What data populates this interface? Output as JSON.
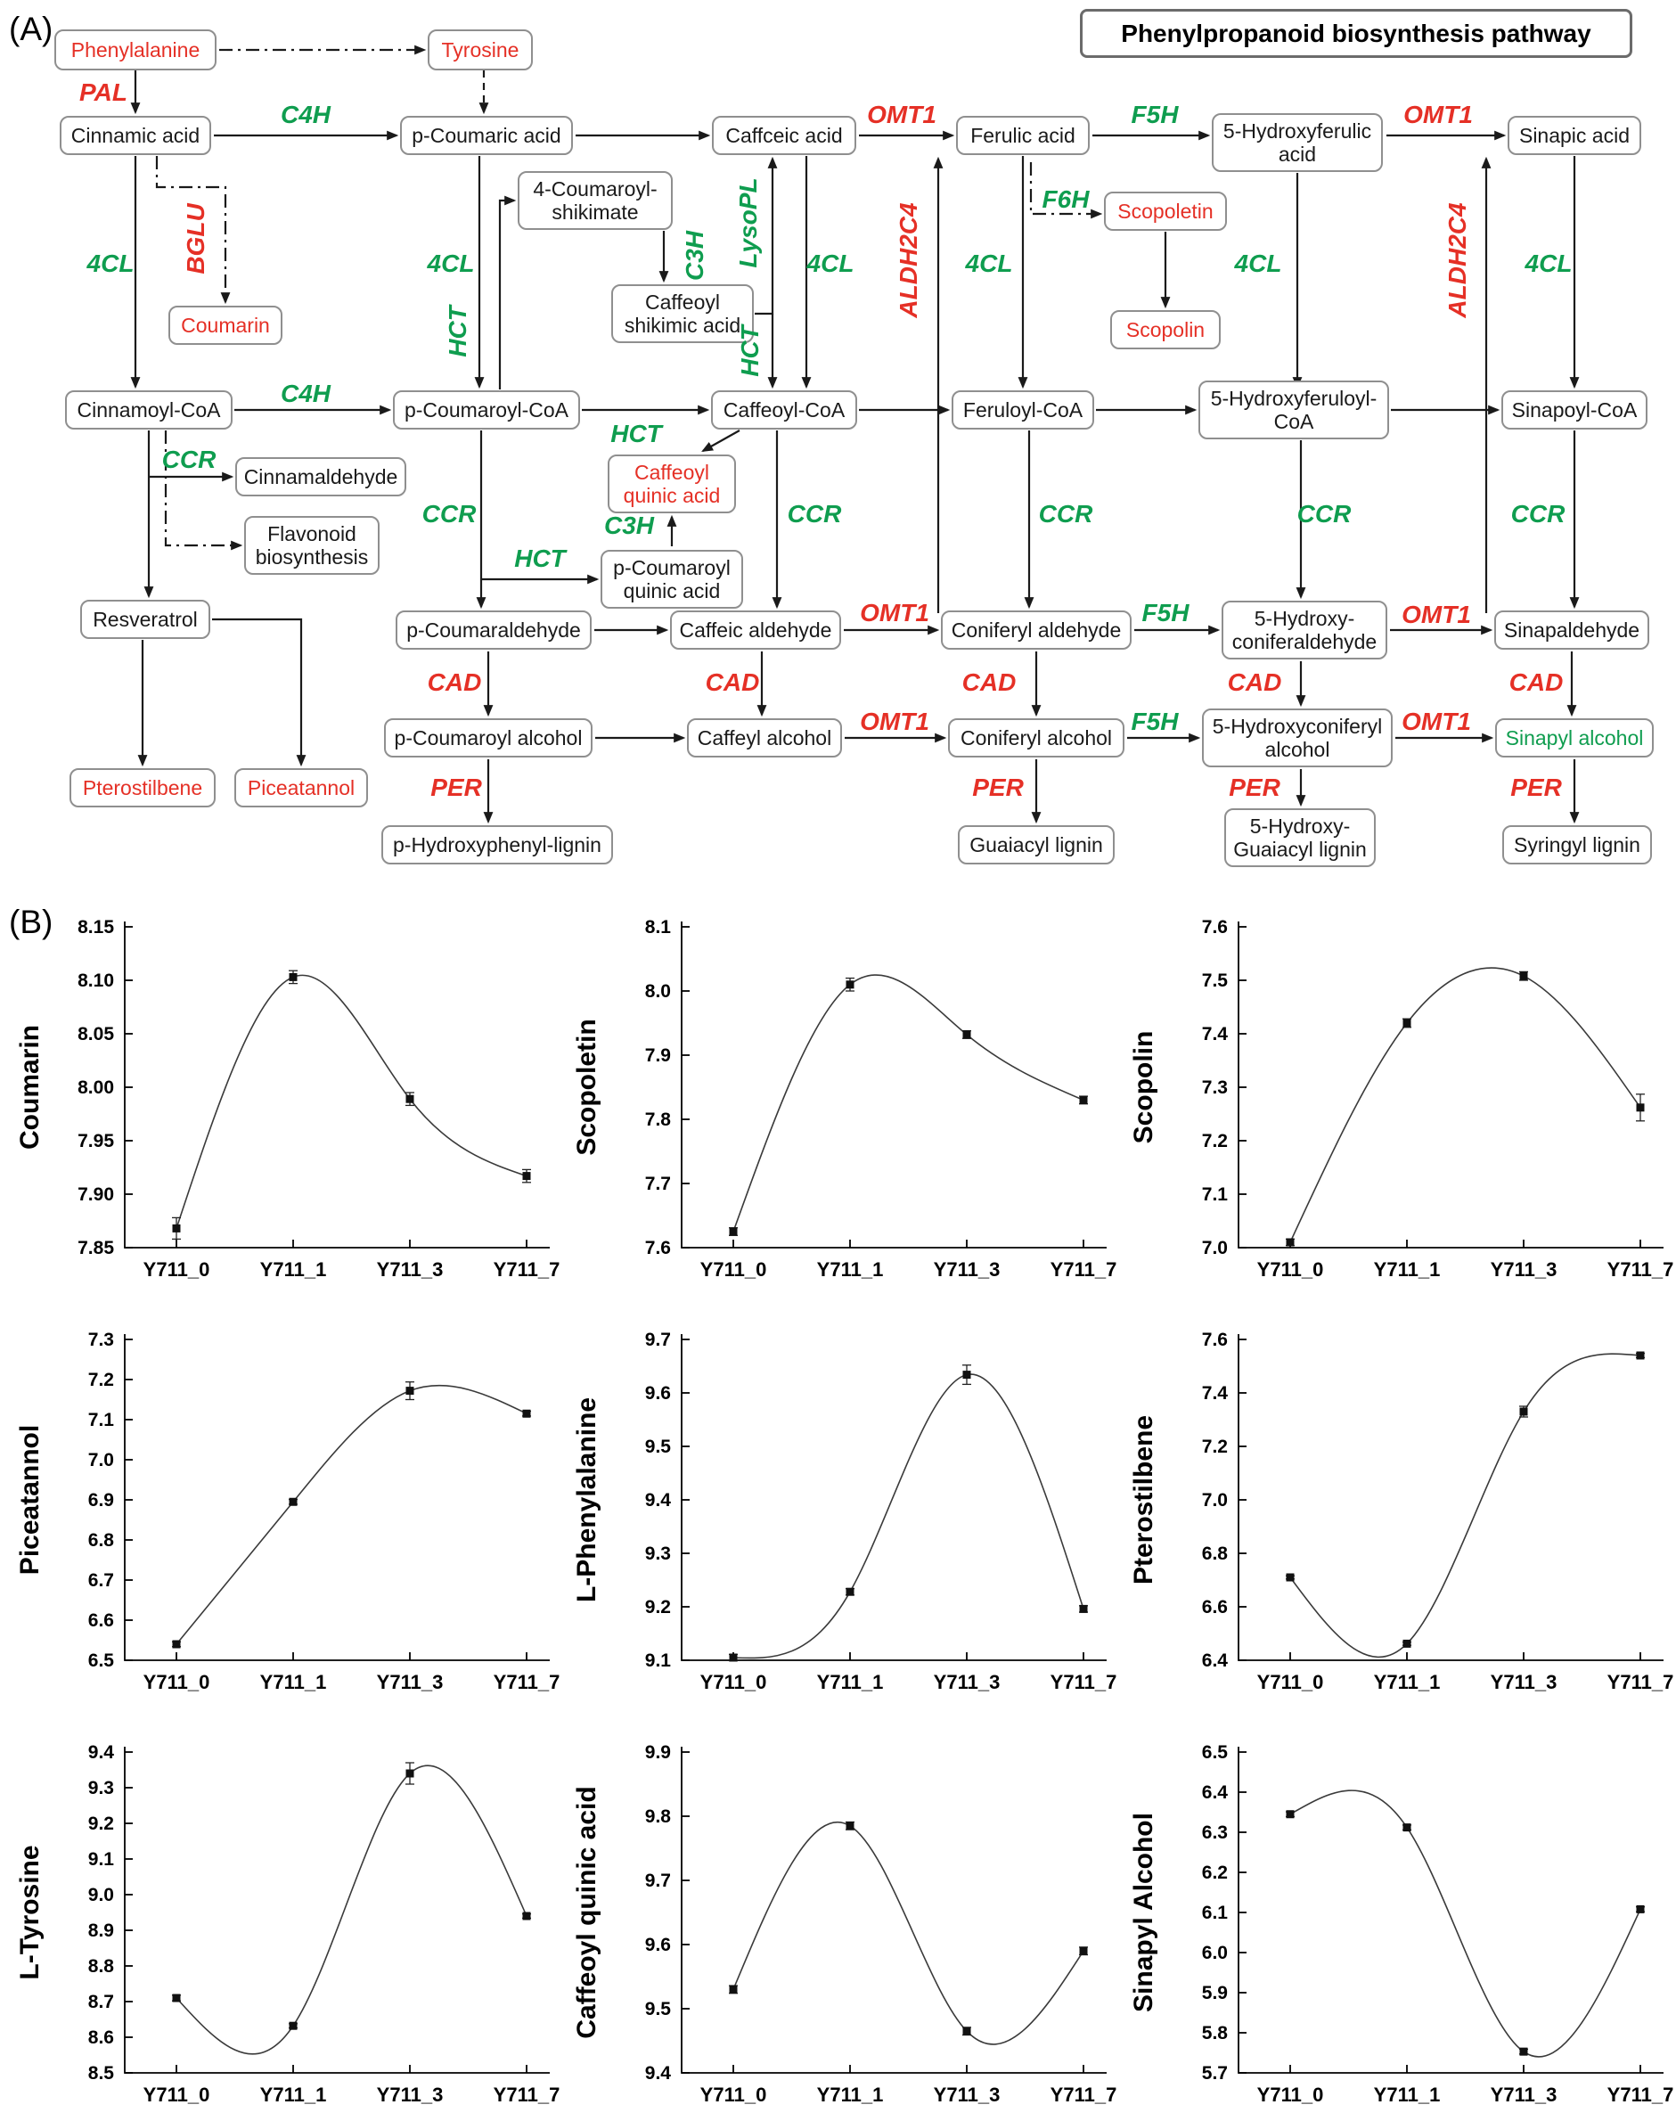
{
  "panel_a": {
    "label": "(A)",
    "title": "Phenylpropanoid biosynthesis pathway",
    "nodes": [
      {
        "id": "phe",
        "label": "Phenylalanine",
        "color": "red"
      },
      {
        "id": "tyr",
        "label": "Tyrosine",
        "color": "red"
      },
      {
        "id": "cinnamic",
        "label": "Cinnamic acid",
        "color": "black"
      },
      {
        "id": "pcoumaric",
        "label": "p-Coumaric acid",
        "color": "black"
      },
      {
        "id": "caffceic",
        "label": "Caffceic acid",
        "color": "black"
      },
      {
        "id": "ferulic",
        "label": "Ferulic acid",
        "color": "black"
      },
      {
        "id": "hferulic",
        "label": "5-Hydroxyferulic\nacid",
        "color": "black"
      },
      {
        "id": "sinapic",
        "label": "Sinapic acid",
        "color": "black"
      },
      {
        "id": "coumshik",
        "label": "4-Coumaroyl-\nshikimate",
        "color": "black"
      },
      {
        "id": "caffshik",
        "label": "Caffeoyl\nshikimic acid",
        "color": "black"
      },
      {
        "id": "coumarin",
        "label": "Coumarin",
        "color": "red"
      },
      {
        "id": "scopoletin",
        "label": "Scopoletin",
        "color": "red"
      },
      {
        "id": "scopolin",
        "label": "Scopolin",
        "color": "red"
      },
      {
        "id": "cincoa",
        "label": "Cinnamoyl-CoA",
        "color": "black"
      },
      {
        "id": "pcoumcoa",
        "label": "p-Coumaroyl-CoA",
        "color": "black"
      },
      {
        "id": "caffcoa",
        "label": "Caffeoyl-CoA",
        "color": "black"
      },
      {
        "id": "fercoa",
        "label": "Feruloyl-CoA",
        "color": "black"
      },
      {
        "id": "hfercoa",
        "label": "5-Hydroxyferuloyl-\nCoA",
        "color": "black"
      },
      {
        "id": "sincoa",
        "label": "Sinapoyl-CoA",
        "color": "black"
      },
      {
        "id": "caffquinic",
        "label": "Caffeoyl\nquinic acid",
        "color": "red"
      },
      {
        "id": "pcoumquinic",
        "label": "p-Coumaroyl\nquinic acid",
        "color": "black"
      },
      {
        "id": "cinnamald",
        "label": "Cinnamaldehyde",
        "color": "black"
      },
      {
        "id": "flavonoid",
        "label": "Flavonoid\nbiosynthesis",
        "color": "black"
      },
      {
        "id": "resveratrol",
        "label": "Resveratrol",
        "color": "black"
      },
      {
        "id": "pcoumald",
        "label": "p-Coumaraldehyde",
        "color": "black"
      },
      {
        "id": "caffald",
        "label": "Caffeic aldehyde",
        "color": "black"
      },
      {
        "id": "conifald",
        "label": "Coniferyl aldehyde",
        "color": "black"
      },
      {
        "id": "hconifald",
        "label": "5-Hydroxy-\nconiferaldehyde",
        "color": "black"
      },
      {
        "id": "sinapald",
        "label": "Sinapaldehyde",
        "color": "black"
      },
      {
        "id": "pcoumalc",
        "label": "p-Coumaroyl alcohol",
        "color": "black"
      },
      {
        "id": "caffalc",
        "label": "Caffeyl alcohol",
        "color": "black"
      },
      {
        "id": "conifalc",
        "label": "Coniferyl alcohol",
        "color": "black"
      },
      {
        "id": "hconifalc",
        "label": "5-Hydroxyconiferyl\nalcohol",
        "color": "black"
      },
      {
        "id": "sinapalc",
        "label": "Sinapyl alcohol",
        "color": "green"
      },
      {
        "id": "pterostilbene",
        "label": "Pterostilbene",
        "color": "red"
      },
      {
        "id": "piceatannol",
        "label": "Piceatannol",
        "color": "red"
      },
      {
        "id": "phlignin",
        "label": "p-Hydroxyphenyl-lignin",
        "color": "black"
      },
      {
        "id": "glignin",
        "label": "Guaiacyl lignin",
        "color": "black"
      },
      {
        "id": "hglignin",
        "label": "5-Hydroxy-\nGuaiacyl lignin",
        "color": "black"
      },
      {
        "id": "slignin",
        "label": "Syringyl lignin",
        "color": "black"
      }
    ],
    "enzymes": [
      {
        "id": "pal",
        "label": "PAL",
        "color": "red"
      },
      {
        "id": "c4h_1",
        "label": "C4H",
        "color": "green"
      },
      {
        "id": "omt1_1",
        "label": "OMT1",
        "color": "red"
      },
      {
        "id": "f5h_1",
        "label": "F5H",
        "color": "green"
      },
      {
        "id": "omt1_2",
        "label": "OMT1",
        "color": "red"
      },
      {
        "id": "bglu",
        "label": "BGLU",
        "color": "red"
      },
      {
        "id": "cl4_1",
        "label": "4CL",
        "color": "green"
      },
      {
        "id": "cl4_2",
        "label": "4CL",
        "color": "green"
      },
      {
        "id": "cl4_3",
        "label": "4CL",
        "color": "green"
      },
      {
        "id": "cl4_4",
        "label": "4CL",
        "color": "green"
      },
      {
        "id": "cl4_5",
        "label": "4CL",
        "color": "green"
      },
      {
        "id": "cl4_6",
        "label": "4CL",
        "color": "green"
      },
      {
        "id": "hct_1",
        "label": "HCT",
        "color": "green"
      },
      {
        "id": "hct_2",
        "label": "HCT",
        "color": "green"
      },
      {
        "id": "hct_3",
        "label": "HCT",
        "color": "green"
      },
      {
        "id": "hct_4",
        "label": "HCT",
        "color": "green"
      },
      {
        "id": "c3h_1",
        "label": "C3H",
        "color": "green"
      },
      {
        "id": "c3h_2",
        "label": "C3H",
        "color": "green"
      },
      {
        "id": "lysopl",
        "label": "LysoPL",
        "color": "green"
      },
      {
        "id": "aldh_1",
        "label": "ALDH2C4",
        "color": "red"
      },
      {
        "id": "aldh_2",
        "label": "ALDH2C4",
        "color": "red"
      },
      {
        "id": "f6h",
        "label": "F6H",
        "color": "green"
      },
      {
        "id": "c4h_2",
        "label": "C4H",
        "color": "green"
      },
      {
        "id": "ccr_1",
        "label": "CCR",
        "color": "green"
      },
      {
        "id": "ccr_2",
        "label": "CCR",
        "color": "green"
      },
      {
        "id": "ccr_3",
        "label": "CCR",
        "color": "green"
      },
      {
        "id": "ccr_4",
        "label": "CCR",
        "color": "green"
      },
      {
        "id": "ccr_5",
        "label": "CCR",
        "color": "green"
      },
      {
        "id": "ccr_6",
        "label": "CCR",
        "color": "green"
      },
      {
        "id": "omt1_3",
        "label": "OMT1",
        "color": "red"
      },
      {
        "id": "f5h_2",
        "label": "F5H",
        "color": "green"
      },
      {
        "id": "omt1_4",
        "label": "OMT1",
        "color": "red"
      },
      {
        "id": "cad_1",
        "label": "CAD",
        "color": "red"
      },
      {
        "id": "cad_2",
        "label": "CAD",
        "color": "red"
      },
      {
        "id": "cad_3",
        "label": "CAD",
        "color": "red"
      },
      {
        "id": "cad_4",
        "label": "CAD",
        "color": "red"
      },
      {
        "id": "cad_5",
        "label": "CAD",
        "color": "red"
      },
      {
        "id": "omt1_5",
        "label": "OMT1",
        "color": "red"
      },
      {
        "id": "f5h_3",
        "label": "F5H",
        "color": "green"
      },
      {
        "id": "omt1_6",
        "label": "OMT1",
        "color": "red"
      },
      {
        "id": "per_1",
        "label": "PER",
        "color": "red"
      },
      {
        "id": "per_2",
        "label": "PER",
        "color": "red"
      },
      {
        "id": "per_3",
        "label": "PER",
        "color": "red"
      },
      {
        "id": "per_4",
        "label": "PER",
        "color": "red"
      }
    ]
  },
  "panel_b": {
    "label": "(B)"
  },
  "chart_data": [
    {
      "id": "coumarin",
      "type": "line",
      "ylabel": "Coumarin",
      "categories": [
        "Y711_0",
        "Y711_1",
        "Y711_3",
        "Y711_7"
      ],
      "values": [
        7.868,
        8.103,
        7.989,
        7.917
      ],
      "errors": [
        0.01,
        0.006,
        0.006,
        0.006
      ],
      "ylim": [
        7.85,
        8.15
      ],
      "yticks": [
        7.85,
        7.9,
        7.95,
        8.0,
        8.05,
        8.1,
        8.15
      ],
      "ytick_labels": [
        "7.85",
        "7.90",
        "7.95",
        "8.00",
        "8.05",
        "8.10",
        "8.15"
      ]
    },
    {
      "id": "scopoletin",
      "type": "line",
      "ylabel": "Scopoletin",
      "categories": [
        "Y711_0",
        "Y711_1",
        "Y711_3",
        "Y711_7"
      ],
      "values": [
        7.625,
        8.01,
        7.932,
        7.83
      ],
      "errors": [
        0.006,
        0.01,
        0.006,
        0.006
      ],
      "ylim": [
        7.6,
        8.1
      ],
      "yticks": [
        7.6,
        7.7,
        7.8,
        7.9,
        8.0,
        8.1
      ],
      "ytick_labels": [
        "7.6",
        "7.7",
        "7.8",
        "7.9",
        "8.0",
        "8.1"
      ]
    },
    {
      "id": "scopolin",
      "type": "line",
      "ylabel": "Scopolin",
      "categories": [
        "Y711_0",
        "Y711_1",
        "Y711_3",
        "Y711_7"
      ],
      "values": [
        7.01,
        7.42,
        7.508,
        7.262
      ],
      "errors": [
        0.006,
        0.008,
        0.008,
        0.025
      ],
      "ylim": [
        7.0,
        7.6
      ],
      "yticks": [
        7.0,
        7.1,
        7.2,
        7.3,
        7.4,
        7.5,
        7.6
      ],
      "ytick_labels": [
        "7.0",
        "7.1",
        "7.2",
        "7.3",
        "7.4",
        "7.5",
        "7.6"
      ]
    },
    {
      "id": "piceatannol",
      "type": "line",
      "ylabel": "Piceatannol",
      "categories": [
        "Y711_0",
        "Y711_1",
        "Y711_3",
        "Y711_7"
      ],
      "values": [
        6.54,
        6.895,
        7.172,
        7.115
      ],
      "errors": [
        0.006,
        0.006,
        0.022,
        0.006
      ],
      "ylim": [
        6.5,
        7.3
      ],
      "yticks": [
        6.5,
        6.6,
        6.7,
        6.8,
        6.9,
        7.0,
        7.1,
        7.2,
        7.3
      ],
      "ytick_labels": [
        "6.5",
        "6.6",
        "6.7",
        "6.8",
        "6.9",
        "7.0",
        "7.1",
        "7.2",
        "7.3"
      ]
    },
    {
      "id": "l_phenylalanine",
      "type": "line",
      "ylabel": "L-Phenylalanine",
      "categories": [
        "Y711_0",
        "Y711_1",
        "Y711_3",
        "Y711_7"
      ],
      "values": [
        9.105,
        9.228,
        9.634,
        9.196
      ],
      "errors": [
        0.006,
        0.006,
        0.018,
        0.006
      ],
      "ylim": [
        9.1,
        9.7
      ],
      "yticks": [
        9.1,
        9.2,
        9.3,
        9.4,
        9.5,
        9.6,
        9.7
      ],
      "ytick_labels": [
        "9.1",
        "9.2",
        "9.3",
        "9.4",
        "9.5",
        "9.6",
        "9.7"
      ]
    },
    {
      "id": "pterostilbene",
      "type": "line",
      "ylabel": "Pterostilbene",
      "categories": [
        "Y711_0",
        "Y711_1",
        "Y711_3",
        "Y711_7"
      ],
      "values": [
        6.71,
        6.462,
        7.33,
        7.54
      ],
      "errors": [
        0.006,
        0.006,
        0.02,
        0.008
      ],
      "ylim": [
        6.4,
        7.6
      ],
      "yticks": [
        6.4,
        6.6,
        6.8,
        7.0,
        7.2,
        7.4,
        7.6
      ],
      "ytick_labels": [
        "6.4",
        "6.6",
        "6.8",
        "7.0",
        "7.2",
        "7.4",
        "7.6"
      ]
    },
    {
      "id": "l_tyrosine",
      "type": "line",
      "ylabel": "L-Tyrosine",
      "categories": [
        "Y711_0",
        "Y711_1",
        "Y711_3",
        "Y711_7"
      ],
      "values": [
        8.71,
        8.632,
        9.34,
        8.94
      ],
      "errors": [
        0.008,
        0.006,
        0.03,
        0.006
      ],
      "ylim": [
        8.5,
        9.4
      ],
      "yticks": [
        8.5,
        8.6,
        8.7,
        8.8,
        8.9,
        9.0,
        9.1,
        9.2,
        9.3,
        9.4
      ],
      "ytick_labels": [
        "8.5",
        "8.6",
        "8.7",
        "8.8",
        "8.9",
        "9.0",
        "9.1",
        "9.2",
        "9.3",
        "9.4"
      ]
    },
    {
      "id": "caffeoyl_quinic_acid",
      "type": "line",
      "ylabel": "Caffeoyl quinic acid",
      "categories": [
        "Y711_0",
        "Y711_1",
        "Y711_3",
        "Y711_7"
      ],
      "values": [
        9.53,
        9.785,
        9.465,
        9.59
      ],
      "errors": [
        0.006,
        0.006,
        0.006,
        0.006
      ],
      "ylim": [
        9.4,
        9.9
      ],
      "yticks": [
        9.4,
        9.5,
        9.6,
        9.7,
        9.8,
        9.9
      ],
      "ytick_labels": [
        "9.4",
        "9.5",
        "9.6",
        "9.7",
        "9.8",
        "9.9"
      ]
    },
    {
      "id": "sinapyl_alcohol",
      "type": "line",
      "ylabel": "Sinapyl Alcohol",
      "categories": [
        "Y711_0",
        "Y711_1",
        "Y711_3",
        "Y711_7"
      ],
      "values": [
        6.345,
        6.312,
        5.753,
        6.108
      ],
      "errors": [
        0.006,
        0.006,
        0.006,
        0.006
      ],
      "ylim": [
        5.7,
        6.5
      ],
      "yticks": [
        5.7,
        5.8,
        5.9,
        6.0,
        6.1,
        6.2,
        6.3,
        6.4,
        6.5
      ],
      "ytick_labels": [
        "5.7",
        "5.8",
        "5.9",
        "6.0",
        "6.1",
        "6.2",
        "6.3",
        "6.4",
        "6.5"
      ]
    }
  ]
}
